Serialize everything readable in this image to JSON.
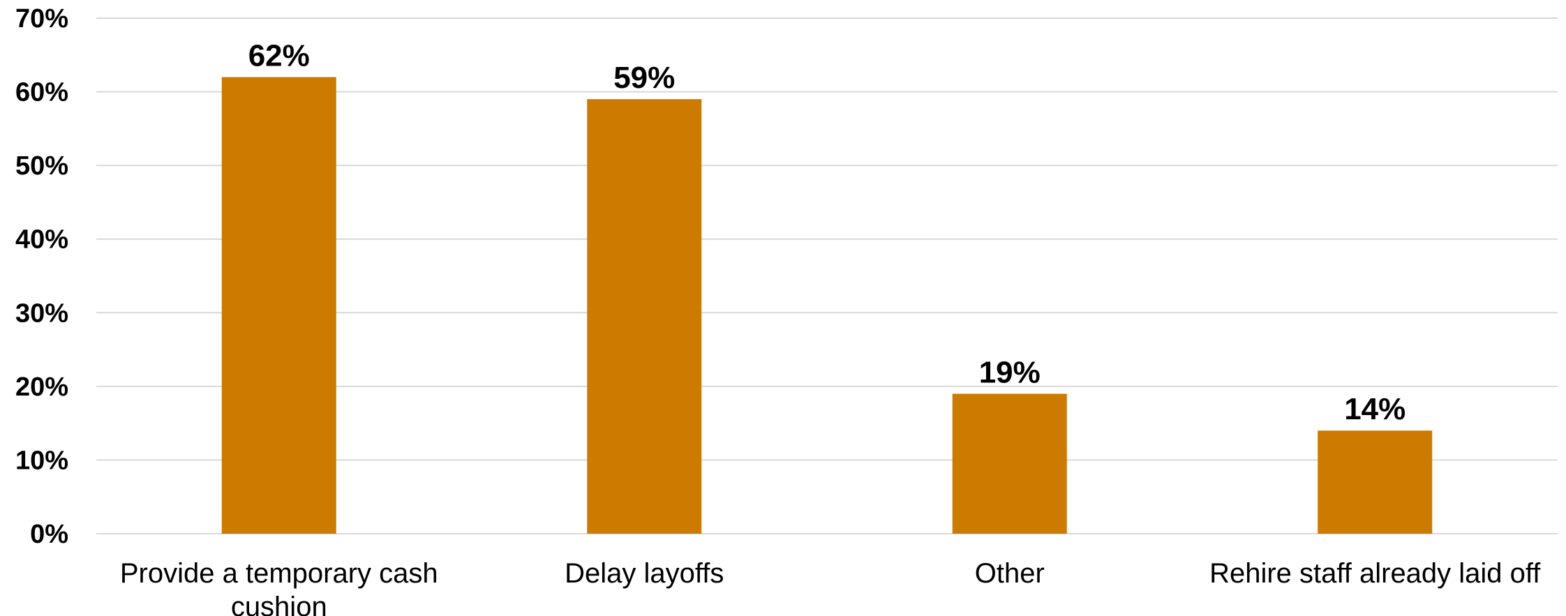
{
  "chart_data": {
    "type": "bar",
    "categories": [
      [
        "Provide a temporary cash",
        "cushion"
      ],
      [
        "Delay layoffs"
      ],
      [
        "Other"
      ],
      [
        "Rehire staff already laid off"
      ]
    ],
    "values": [
      62,
      59,
      19,
      14
    ],
    "data_labels": [
      "62%",
      "59%",
      "19%",
      "14%"
    ],
    "y_ticks": [
      0,
      10,
      20,
      30,
      40,
      50,
      60,
      70
    ],
    "y_tick_labels": [
      "0%",
      "10%",
      "20%",
      "30%",
      "40%",
      "50%",
      "60%",
      "70%"
    ],
    "ylim": [
      0,
      70
    ],
    "title": "",
    "xlabel": "",
    "ylabel": "",
    "grid": true,
    "legend": "none",
    "bar_color": "#cc7a00"
  }
}
